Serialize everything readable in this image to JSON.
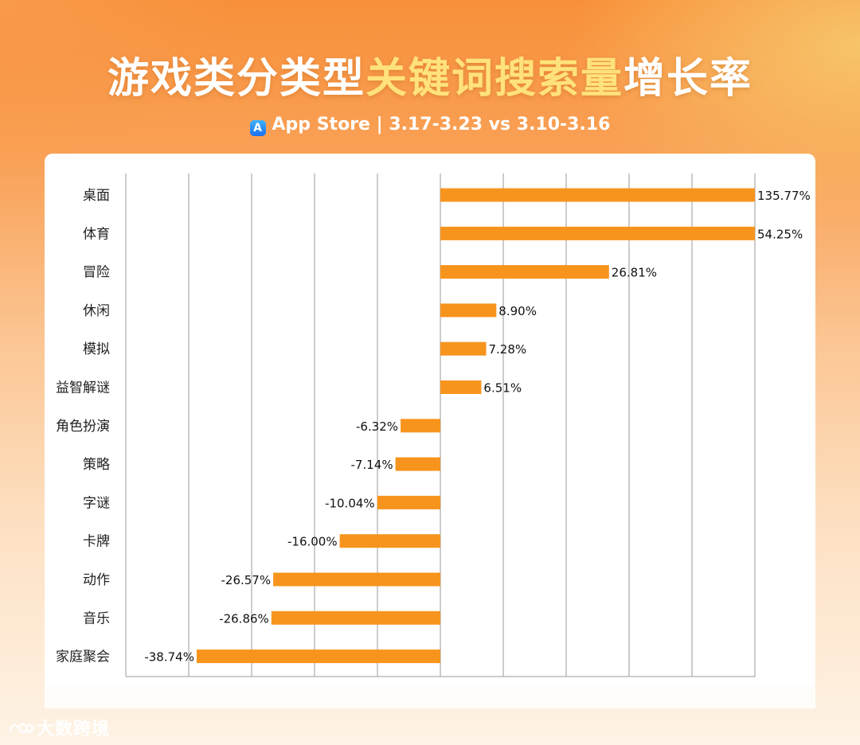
{
  "header": {
    "title_part1": "游戏类分类型",
    "title_highlight": "关键词搜索量",
    "title_part2": "增长率",
    "subtitle": "App Store | 3.17-3.23 vs 3.10-3.16",
    "store_icon": "app-store-icon"
  },
  "brand": {
    "name": "大数跨境",
    "logo": "dashu-logo-icon"
  },
  "colors": {
    "bar": "#f7941d",
    "grid": "#9a9a9a",
    "accent": "#ffe27a"
  },
  "chart_data": {
    "type": "bar",
    "orientation": "horizontal",
    "title": "游戏类分类型关键词搜索量增长率",
    "subtitle": "App Store | 3.17-3.23 vs 3.10-3.16",
    "categories": [
      "桌面",
      "体育",
      "冒险",
      "休闲",
      "模拟",
      "益智解谜",
      "角色扮演",
      "策略",
      "字谜",
      "卡牌",
      "动作",
      "音乐",
      "家庭聚会"
    ],
    "values": [
      135.77,
      54.25,
      26.81,
      8.9,
      7.28,
      6.51,
      -6.32,
      -7.14,
      -10.04,
      -16.0,
      -26.57,
      -26.86,
      -38.74
    ],
    "value_labels": [
      "135.77%",
      "54.25%",
      "26.81%",
      "8.90%",
      "7.28%",
      "6.51%",
      "-6.32%",
      "-7.14%",
      "-10.04%",
      "-16.00%",
      "-26.57%",
      "-26.86%",
      "-38.74%"
    ],
    "xlim": [
      -50,
      50
    ],
    "clipped": true,
    "grid": true,
    "unit": "%"
  }
}
